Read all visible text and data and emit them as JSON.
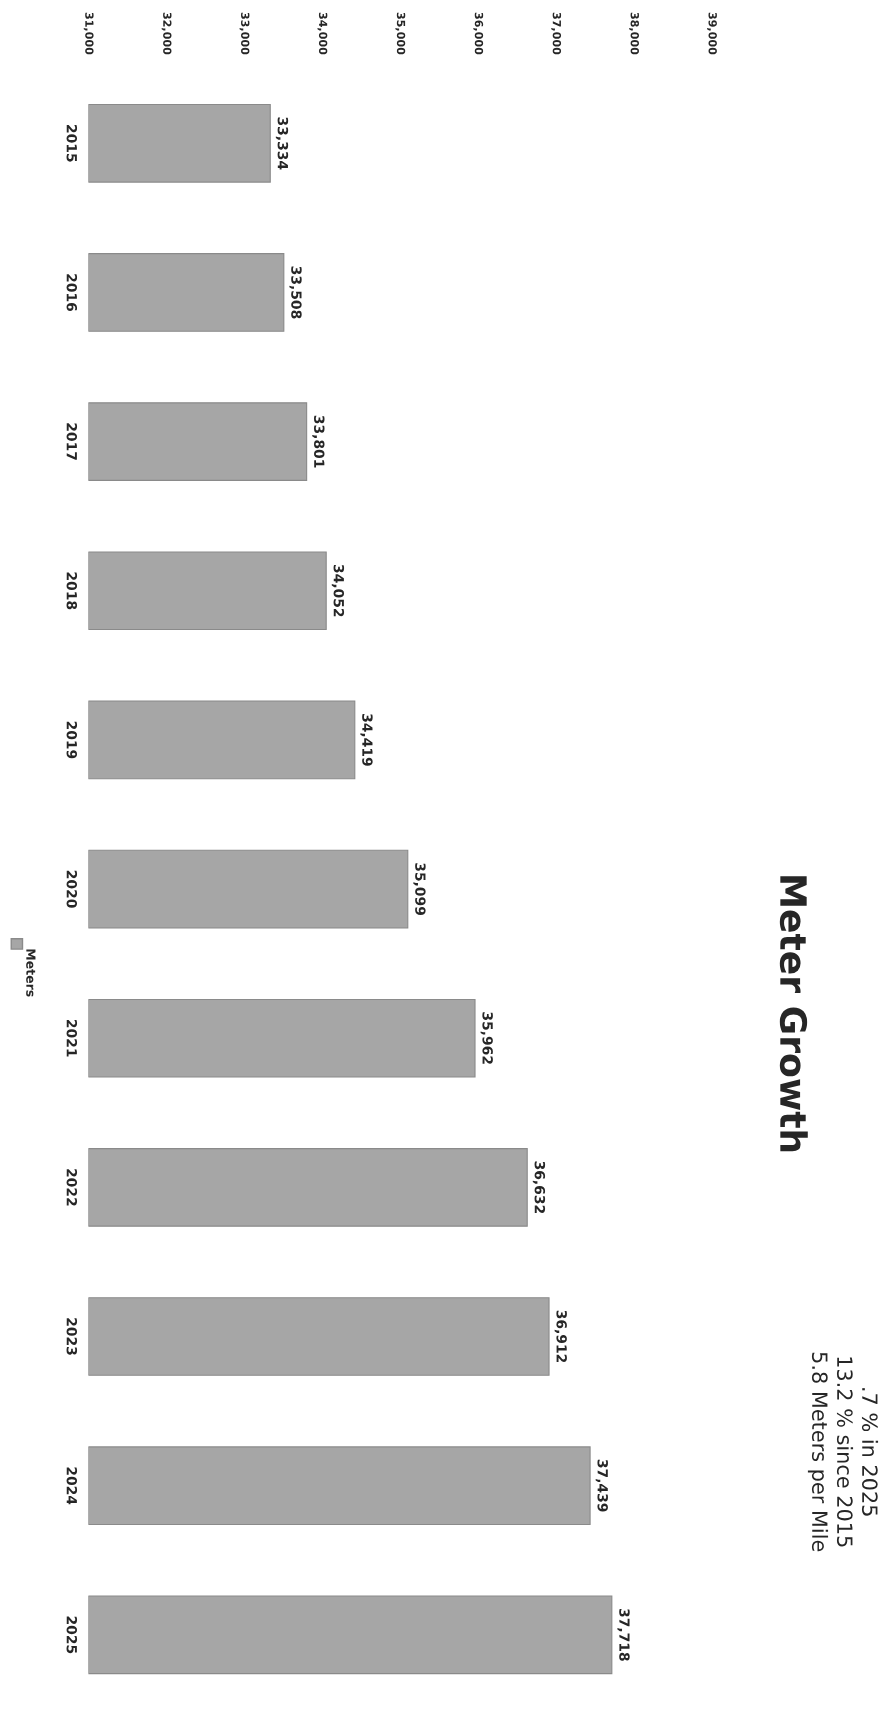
{
  "chart_data": {
    "type": "bar",
    "orientation": "horizontal",
    "title": "Meter Growth",
    "categories": [
      "2015",
      "2016",
      "2017",
      "2018",
      "2019",
      "2020",
      "2021",
      "2022",
      "2023",
      "2024",
      "2025"
    ],
    "series": [
      {
        "name": "Meters",
        "color": "#a6a6a6",
        "values": [
          33334,
          33508,
          33801,
          34052,
          34419,
          35099,
          35962,
          36632,
          36912,
          37439,
          37718
        ]
      }
    ],
    "xlim": [
      31000,
      39000
    ],
    "xticks": [
      {
        "value": 31000,
        "label": "31,000"
      },
      {
        "value": 32000,
        "label": "32,000"
      },
      {
        "value": 33000,
        "label": "33,000"
      },
      {
        "value": 34000,
        "label": "34,000"
      },
      {
        "value": 35000,
        "label": "35,000"
      },
      {
        "value": 36000,
        "label": "36,000"
      },
      {
        "value": 37000,
        "label": "37,000"
      },
      {
        "value": 38000,
        "label": "38,000"
      },
      {
        "value": 39000,
        "label": "39,000"
      }
    ],
    "value_labels": [
      "33,334",
      "33,508",
      "33,801",
      "34,052",
      "34,419",
      "35,099",
      "35,962",
      "36,632",
      "36,912",
      "37,439",
      "37,718"
    ],
    "annotations": [
      ".7 % in 2025",
      "13.2 % since 2015",
      "5.8 Meters per Mile"
    ],
    "legend": "left",
    "grid": false
  }
}
